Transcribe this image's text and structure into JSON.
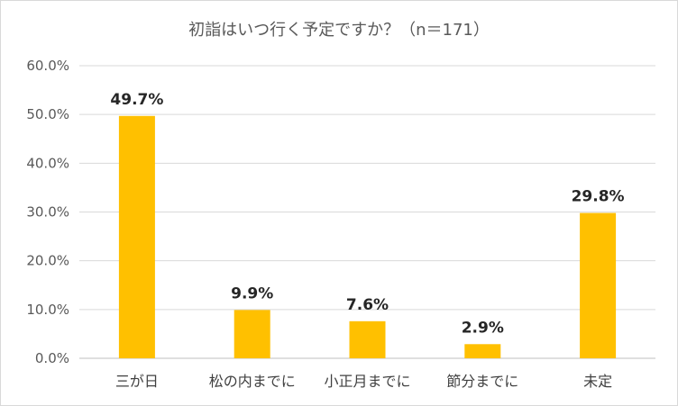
{
  "chart_data": {
    "type": "bar",
    "title": "初詣はいつ行く予定ですか？（n＝171）",
    "categories": [
      "三が日",
      "松の内までに",
      "小正月までに",
      "節分までに",
      "未定"
    ],
    "values": [
      49.7,
      9.9,
      7.6,
      2.9,
      29.8
    ],
    "data_labels": [
      "49.7%",
      "9.9%",
      "7.6%",
      "2.9%",
      "29.8%"
    ],
    "y_ticks": [
      "0.0%",
      "10.0%",
      "20.0%",
      "30.0%",
      "40.0%",
      "50.0%",
      "60.0%"
    ],
    "ylim": [
      0,
      60
    ],
    "grid": true,
    "legend": "none",
    "bar_color": "#FFC000"
  }
}
